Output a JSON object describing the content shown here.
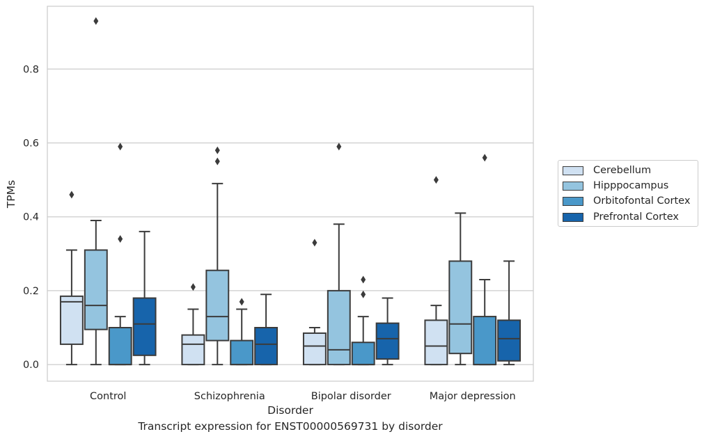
{
  "chart_data": {
    "type": "box",
    "caption": "Transcript expression for ENST00000569731 by disorder",
    "xlabel": "Disorder",
    "ylabel": "TPMs",
    "ylim": [
      -0.045,
      0.97
    ],
    "yticks": [
      "0.0",
      "0.2",
      "0.4",
      "0.6",
      "0.8"
    ],
    "ytick_values": [
      0.0,
      0.2,
      0.4,
      0.6,
      0.8
    ],
    "grid": true,
    "legend_position": "right",
    "categories": [
      "Control",
      "Schizophrenia",
      "Bipolar disorder",
      "Major depression"
    ],
    "series": [
      {
        "name": "Cerebellum",
        "color": "#d0e1f2",
        "boxes": [
          {
            "whislo": 0.0,
            "q1": 0.055,
            "med": 0.17,
            "q3": 0.185,
            "whishi": 0.31,
            "fliers": [
              0.46
            ]
          },
          {
            "whislo": 0.0,
            "q1": 0.0,
            "med": 0.055,
            "q3": 0.08,
            "whishi": 0.15,
            "fliers": [
              0.21
            ]
          },
          {
            "whislo": 0.0,
            "q1": 0.0,
            "med": 0.05,
            "q3": 0.085,
            "whishi": 0.1,
            "fliers": [
              0.33
            ]
          },
          {
            "whislo": 0.0,
            "q1": 0.0,
            "med": 0.05,
            "q3": 0.12,
            "whishi": 0.16,
            "fliers": [
              0.5
            ]
          }
        ]
      },
      {
        "name": "Hipppocampus",
        "color": "#94c4df",
        "boxes": [
          {
            "whislo": 0.0,
            "q1": 0.095,
            "med": 0.16,
            "q3": 0.31,
            "whishi": 0.39,
            "fliers": [
              0.93
            ]
          },
          {
            "whislo": 0.0,
            "q1": 0.065,
            "med": 0.13,
            "q3": 0.255,
            "whishi": 0.49,
            "fliers": [
              0.55,
              0.58
            ]
          },
          {
            "whislo": 0.0,
            "q1": 0.0,
            "med": 0.04,
            "q3": 0.2,
            "whishi": 0.38,
            "fliers": [
              0.59
            ]
          },
          {
            "whislo": 0.0,
            "q1": 0.03,
            "med": 0.11,
            "q3": 0.28,
            "whishi": 0.41,
            "fliers": []
          }
        ]
      },
      {
        "name": "Orbitofontal Cortex",
        "color": "#4a98c9",
        "boxes": [
          {
            "whislo": 0.0,
            "q1": 0.0,
            "med": 0.0,
            "q3": 0.1,
            "whishi": 0.13,
            "fliers": [
              0.34,
              0.59
            ]
          },
          {
            "whislo": 0.0,
            "q1": 0.0,
            "med": 0.0,
            "q3": 0.065,
            "whishi": 0.15,
            "fliers": [
              0.17
            ]
          },
          {
            "whislo": 0.0,
            "q1": 0.0,
            "med": 0.0,
            "q3": 0.06,
            "whishi": 0.13,
            "fliers": [
              0.19,
              0.23
            ]
          },
          {
            "whislo": 0.0,
            "q1": 0.0,
            "med": 0.0,
            "q3": 0.13,
            "whishi": 0.23,
            "fliers": [
              0.56
            ]
          }
        ]
      },
      {
        "name": "Prefrontal Cortex",
        "color": "#1764ab",
        "boxes": [
          {
            "whislo": 0.0,
            "q1": 0.025,
            "med": 0.11,
            "q3": 0.18,
            "whishi": 0.36,
            "fliers": []
          },
          {
            "whislo": 0.0,
            "q1": 0.0,
            "med": 0.055,
            "q3": 0.1,
            "whishi": 0.19,
            "fliers": []
          },
          {
            "whislo": 0.0,
            "q1": 0.015,
            "med": 0.07,
            "q3": 0.112,
            "whishi": 0.18,
            "fliers": []
          },
          {
            "whislo": 0.0,
            "q1": 0.01,
            "med": 0.07,
            "q3": 0.12,
            "whishi": 0.28,
            "fliers": []
          }
        ]
      }
    ]
  }
}
